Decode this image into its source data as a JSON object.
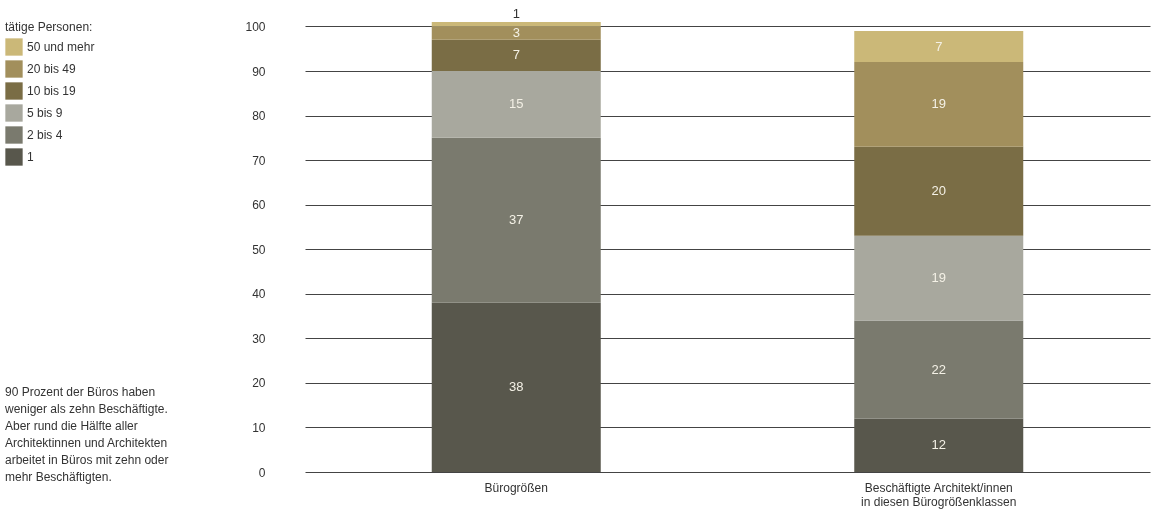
{
  "chart_data": {
    "type": "bar",
    "stacked": true,
    "legend_title": "tätige Personen:",
    "legend": "left",
    "categories": [
      "Bürogrößen",
      "Beschäftigte Architekt/innen\nin diesen Bürogrößenklassen"
    ],
    "series": [
      {
        "name": "1",
        "color": "#58574c",
        "values": [
          38,
          12
        ]
      },
      {
        "name": "2 bis 4",
        "color": "#7a7a6e",
        "values": [
          37,
          22
        ]
      },
      {
        "name": "5 bis 9",
        "color": "#a8a89e",
        "values": [
          15,
          19
        ]
      },
      {
        "name": "10 bis 19",
        "color": "#7a6d45",
        "values": [
          7,
          20
        ]
      },
      {
        "name": "20 bis 49",
        "color": "#a28f5c",
        "values": [
          3,
          19
        ]
      },
      {
        "name": "50 und mehr",
        "color": "#cbb878",
        "values": [
          1,
          7
        ]
      }
    ],
    "ylim": [
      0,
      101
    ],
    "yticks": [
      0,
      10,
      20,
      30,
      40,
      50,
      60,
      70,
      80,
      90,
      100
    ],
    "grid": "y",
    "data_labels": true,
    "annotations": [
      "90 Prozent der Büros haben weniger als zehn Beschäftigte. Aber rund die Hälfte aller Architektinnen und Architekten arbeitet in Büros mit zehn oder mehr Beschäftigten."
    ]
  }
}
